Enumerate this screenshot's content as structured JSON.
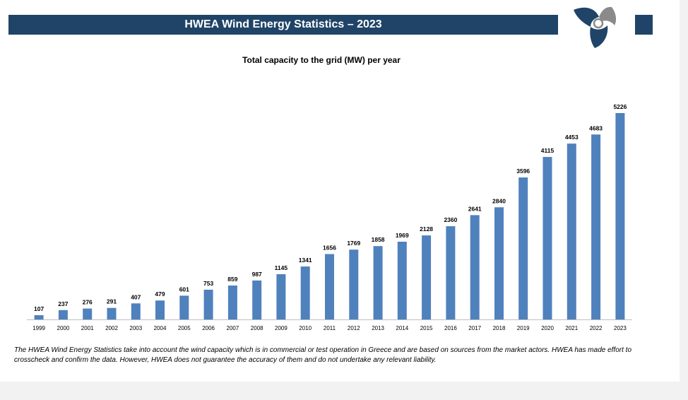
{
  "header": {
    "title": "HWEA Wind Energy Statistics – 2023"
  },
  "colors": {
    "header_bg": "#1f4467",
    "bar": "#4f81bd",
    "logo_blue": "#1f4467",
    "logo_gray": "#8a8a8a"
  },
  "logo": {
    "icon": "wind-turbine-logo-icon"
  },
  "chart_data": {
    "type": "bar",
    "title": "Total capacity to the grid (MW) per year",
    "xlabel": "",
    "ylabel": "",
    "categories": [
      "1999",
      "2000",
      "2001",
      "2002",
      "2003",
      "2004",
      "2005",
      "2006",
      "2007",
      "2008",
      "2009",
      "2010",
      "2011",
      "2012",
      "2013",
      "2014",
      "2015",
      "2016",
      "2017",
      "2018",
      "2019",
      "2020",
      "2021",
      "2022",
      "2023"
    ],
    "values": [
      107,
      237,
      276,
      291,
      407,
      479,
      601,
      753,
      859,
      987,
      1145,
      1341,
      1656,
      1769,
      1858,
      1969,
      2128,
      2360,
      2641,
      2840,
      3596,
      4115,
      4453,
      4683,
      5226
    ],
    "ylim": [
      0,
      5226
    ],
    "grid": false,
    "legend": "none",
    "data_labels": true
  },
  "footnote": "The HWEA Wind Energy Statistics take into account the wind capacity which is in commercial or test operation in Greece and are based on sources from the market actors. HWEA has made effort to crosscheck and confirm the data. However, HWEA does not guarantee the accuracy of them and do not undertake any relevant liability."
}
